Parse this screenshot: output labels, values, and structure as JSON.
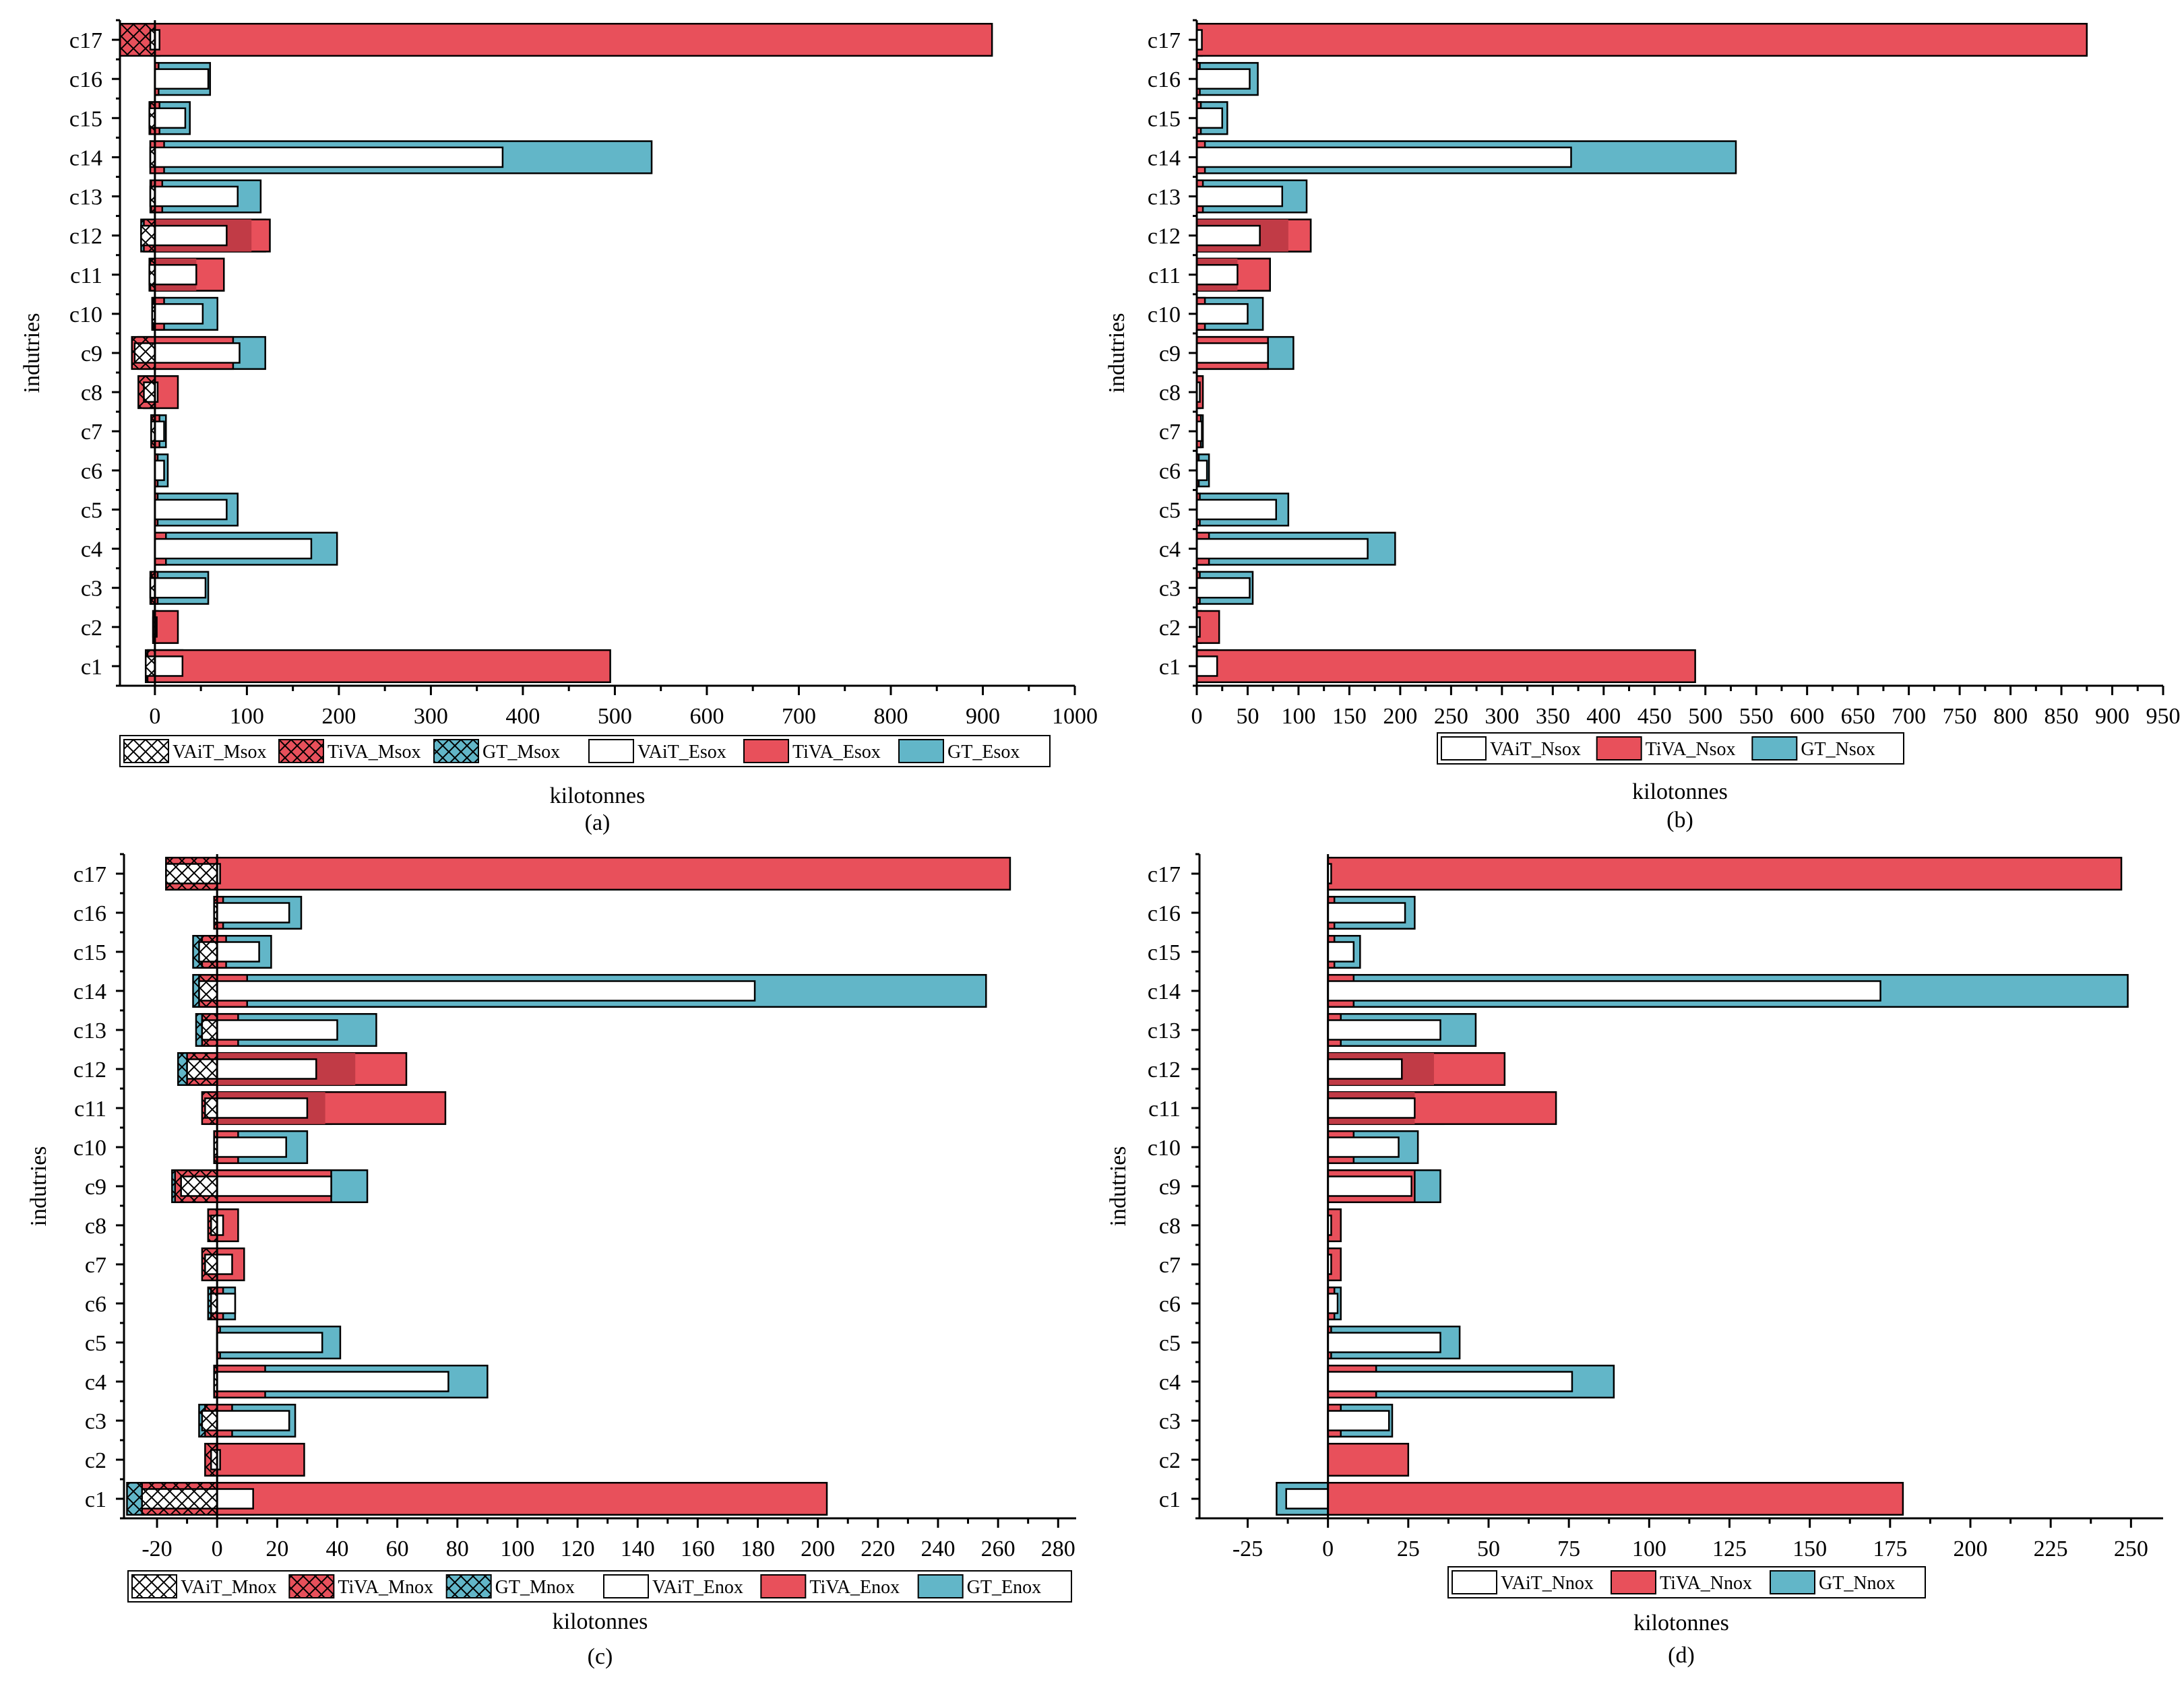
{
  "colors": {
    "vait": "#ffffff",
    "tiva": "#e8505b",
    "gt": "#62b6c8",
    "dark_overlap": "#c13b46",
    "outline": "#000000"
  },
  "chart_data": [
    {
      "id": "a",
      "type": "bar",
      "orientation": "horizontal",
      "panel_label": "(a)",
      "xlabel": "kilotonnes",
      "ylabel": "indutries",
      "xlim": [
        -38,
        1000
      ],
      "xticks": [
        0,
        100,
        200,
        300,
        400,
        500,
        600,
        700,
        800,
        900,
        1000
      ],
      "categories": [
        "c1",
        "c2",
        "c3",
        "c4",
        "c5",
        "c6",
        "c7",
        "c8",
        "c9",
        "c10",
        "c11",
        "c12",
        "c13",
        "c14",
        "c15",
        "c16",
        "c17"
      ],
      "legend": [
        "VAiT_Msox",
        "TiVA_Msox",
        "GT_Msox",
        "VAiT_Esox",
        "TiVA_Esox",
        "GT_Esox"
      ],
      "series": {
        "GT_Esox": [
          30,
          3,
          58,
          198,
          90,
          14,
          12,
          4,
          120,
          68,
          75,
          120,
          115,
          540,
          38,
          60,
          5
        ],
        "TiVA_Esox": [
          495,
          25,
          3,
          12,
          3,
          3,
          5,
          25,
          85,
          10,
          75,
          125,
          8,
          10,
          5,
          4,
          910
        ],
        "VAiT_Esox": [
          30,
          2,
          55,
          170,
          78,
          10,
          10,
          3,
          92,
          52,
          45,
          78,
          90,
          378,
          33,
          58,
          5
        ],
        "TiVA_Esox_overlap": [
          0,
          0,
          0,
          0,
          0,
          0,
          0,
          0,
          0,
          0,
          45,
          105,
          0,
          0,
          0,
          0,
          0
        ],
        "VAiT_Msox": [
          -10,
          -2,
          -5,
          0,
          0,
          0,
          -4,
          -12,
          -22,
          -3,
          -6,
          -15,
          -5,
          -5,
          -6,
          0,
          -5
        ],
        "TiVA_Msox": [
          -8,
          -2,
          -4,
          0,
          0,
          0,
          -4,
          -18,
          -25,
          -2,
          -5,
          -12,
          -4,
          -5,
          -5,
          0,
          -38
        ],
        "GT_Msox": [
          -10,
          -2,
          -5,
          0,
          0,
          0,
          -4,
          -12,
          -18,
          -3,
          -6,
          -15,
          -5,
          -5,
          -6,
          0,
          -5
        ]
      }
    },
    {
      "id": "b",
      "type": "bar",
      "orientation": "horizontal",
      "panel_label": "(b)",
      "xlabel": "kilotonnes",
      "ylabel": "indutries",
      "xlim": [
        0,
        950
      ],
      "xticks": [
        0,
        50,
        100,
        150,
        200,
        250,
        300,
        350,
        400,
        450,
        500,
        550,
        600,
        650,
        700,
        750,
        800,
        850,
        900,
        950
      ],
      "categories": [
        "c1",
        "c2",
        "c3",
        "c4",
        "c5",
        "c6",
        "c7",
        "c8",
        "c9",
        "c10",
        "c11",
        "c12",
        "c13",
        "c14",
        "c15",
        "c16",
        "c17"
      ],
      "legend": [
        "VAiT_Nsox",
        "TiVA_Nsox",
        "GT_Nsox"
      ],
      "series": {
        "GT_Nsox": [
          20,
          4,
          55,
          195,
          90,
          12,
          6,
          3,
          95,
          65,
          72,
          112,
          108,
          530,
          30,
          60,
          5
        ],
        "TiVA_Nsox": [
          490,
          22,
          3,
          12,
          3,
          2,
          4,
          6,
          70,
          8,
          72,
          112,
          6,
          8,
          4,
          3,
          875
        ],
        "VAiT_Nsox": [
          20,
          3,
          52,
          168,
          78,
          10,
          5,
          3,
          70,
          50,
          40,
          62,
          84,
          368,
          25,
          52,
          5
        ],
        "TiVA_Nsox_overlap": [
          0,
          0,
          0,
          0,
          0,
          0,
          0,
          0,
          0,
          0,
          40,
          90,
          0,
          0,
          0,
          0,
          0
        ]
      }
    },
    {
      "id": "c",
      "type": "bar",
      "orientation": "horizontal",
      "panel_label": "(c)",
      "xlabel": "kilotonnes",
      "ylabel": "indutries",
      "xlim": [
        -31,
        286
      ],
      "xticks": [
        -20,
        0,
        20,
        40,
        60,
        80,
        100,
        120,
        140,
        160,
        180,
        200,
        220,
        240,
        260,
        280
      ],
      "categories": [
        "c1",
        "c2",
        "c3",
        "c4",
        "c5",
        "c6",
        "c7",
        "c8",
        "c9",
        "c10",
        "c11",
        "c12",
        "c13",
        "c14",
        "c15",
        "c16",
        "c17"
      ],
      "legend": [
        "VAiT_Mnox",
        "TiVA_Mnox",
        "GT_Mnox",
        "VAiT_Enox",
        "TiVA_Enox",
        "GT_Enox"
      ],
      "series": {
        "GT_Enox": [
          12,
          1,
          26,
          90,
          41,
          6,
          5,
          2,
          50,
          30,
          38,
          45,
          53,
          256,
          18,
          28,
          1
        ],
        "TiVA_Enox": [
          203,
          29,
          5,
          16,
          1,
          2,
          9,
          7,
          38,
          7,
          76,
          63,
          7,
          10,
          3,
          2,
          264
        ],
        "VAiT_Enox": [
          12,
          1,
          24,
          77,
          35,
          6,
          5,
          2,
          38,
          23,
          30,
          33,
          40,
          179,
          14,
          24,
          1
        ],
        "TiVA_Enox_overlap": [
          0,
          0,
          0,
          0,
          0,
          0,
          0,
          0,
          0,
          0,
          36,
          46,
          0,
          0,
          0,
          0,
          0
        ],
        "VAiT_Mnox": [
          -25,
          -2,
          -5,
          -1,
          0,
          -2,
          -4,
          -2,
          -12,
          -1,
          -4,
          -10,
          -5,
          -6,
          -6,
          -1,
          -17
        ],
        "TiVA_Mnox": [
          -25,
          -4,
          -4,
          -1,
          0,
          -2,
          -5,
          -3,
          -14,
          -1,
          -5,
          -10,
          -5,
          -6,
          -5,
          -1,
          -17
        ],
        "GT_Mnox": [
          -30,
          -2,
          -6,
          -1,
          0,
          -3,
          -4,
          -2,
          -15,
          -1,
          -4,
          -13,
          -7,
          -8,
          -8,
          -1,
          -17
        ]
      }
    },
    {
      "id": "d",
      "type": "bar",
      "orientation": "horizontal",
      "panel_label": "(d)",
      "xlabel": "kilotonnes",
      "ylabel": "indutries",
      "xlim": [
        -40,
        260
      ],
      "xticks": [
        -25,
        0,
        25,
        50,
        75,
        100,
        125,
        150,
        175,
        200,
        225,
        250
      ],
      "categories": [
        "c1",
        "c2",
        "c3",
        "c4",
        "c5",
        "c6",
        "c7",
        "c8",
        "c9",
        "c10",
        "c11",
        "c12",
        "c13",
        "c14",
        "c15",
        "c16",
        "c17"
      ],
      "legend": [
        "VAiT_Nnox",
        "TiVA_Nnox",
        "GT_Nnox"
      ],
      "series": {
        "GT_Nnox": [
          -16,
          0,
          20,
          89,
          41,
          4,
          2,
          2,
          35,
          28,
          36,
          44,
          46,
          249,
          10,
          27,
          1
        ],
        "TiVA_Nnox": [
          179,
          25,
          4,
          15,
          1,
          2,
          4,
          4,
          27,
          8,
          71,
          55,
          4,
          8,
          2,
          2,
          247
        ],
        "VAiT_Nnox": [
          -13,
          0,
          19,
          76,
          35,
          3,
          1,
          1,
          26,
          22,
          27,
          23,
          35,
          172,
          8,
          24,
          1
        ],
        "TiVA_Nnox_overlap": [
          0,
          0,
          0,
          0,
          0,
          0,
          0,
          0,
          0,
          0,
          27,
          33,
          0,
          0,
          0,
          0,
          0
        ]
      }
    }
  ]
}
